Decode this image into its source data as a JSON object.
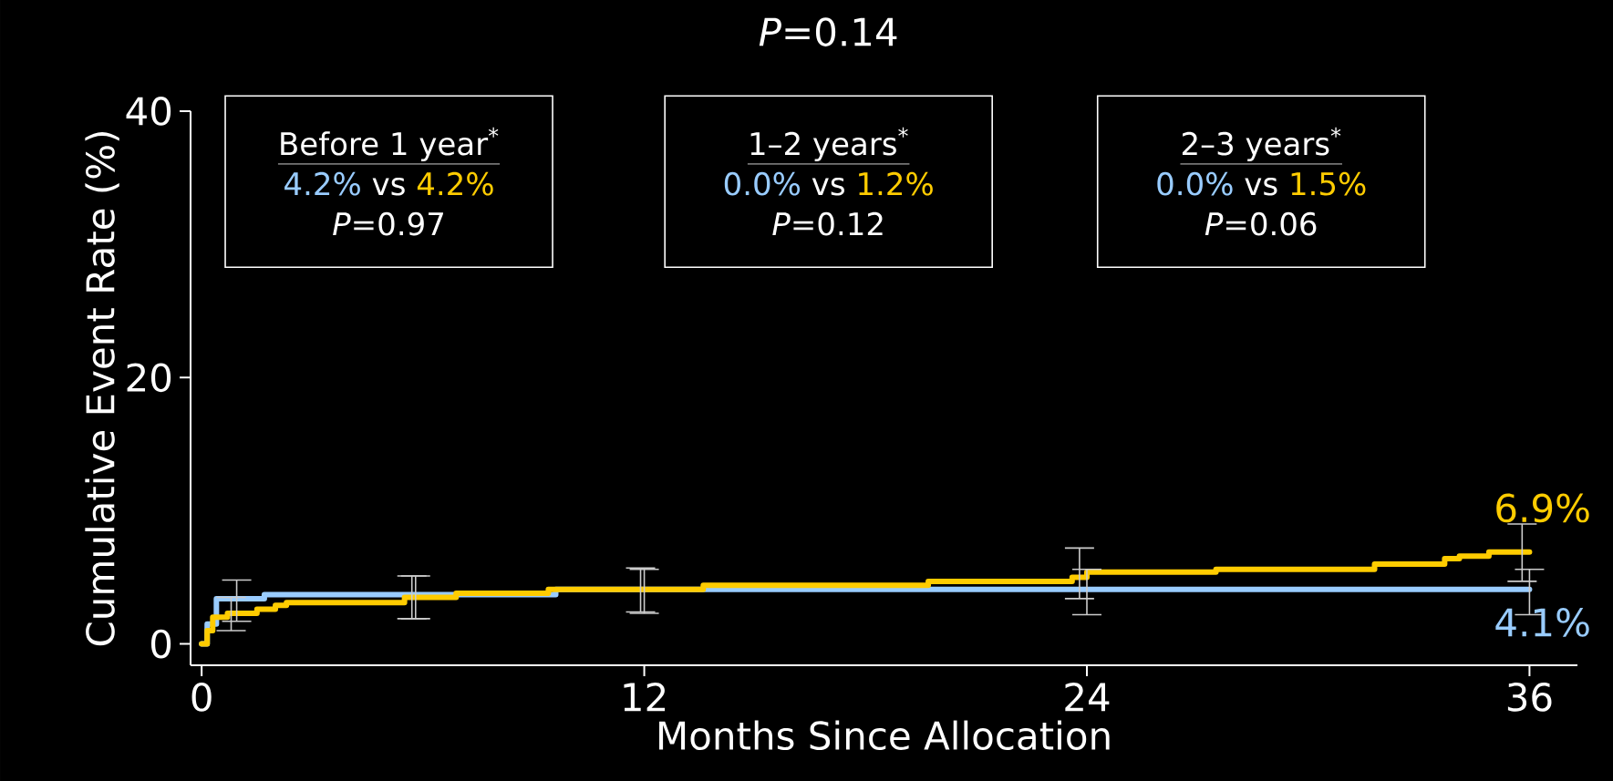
{
  "chart_data": {
    "type": "step",
    "title": "*P*=0.14",
    "xlabel": "Months Since Allocation",
    "ylabel": "Cumulative Event Rate (%)",
    "xlim": [
      -0.3,
      37.3
    ],
    "ylim": [
      -1.6,
      40
    ],
    "xticks": [
      0,
      12,
      24,
      36
    ],
    "yticks": [
      0,
      20,
      40
    ],
    "series": [
      {
        "color": "#99ccff",
        "x": [
          0,
          0.15,
          0.4,
          0.95,
          1.7,
          5.8,
          9.6,
          12.0,
          24.0,
          36
        ],
        "values": [
          0,
          1.5,
          3.4,
          3.4,
          3.7,
          3.7,
          4.1,
          4.1,
          4.1,
          4.1
        ],
        "errors": [
          null,
          null,
          null,
          [
            1.7,
            4.8
          ],
          null,
          [
            1.9,
            5.1
          ],
          null,
          [
            2.3,
            5.6
          ],
          [
            2.2,
            5.6
          ],
          [
            2.2,
            5.6
          ]
        ],
        "value_labels": [
          null,
          null,
          null,
          null,
          null,
          null,
          null,
          null,
          null,
          "4.1%"
        ]
      },
      {
        "color": "#ffcc00",
        "x": [
          0,
          0.15,
          0.3,
          0.7,
          0.8,
          1.5,
          2.0,
          2.3,
          5.5,
          5.7,
          6.9,
          9.4,
          11.9,
          13.6,
          19.7,
          23.6,
          23.8,
          24.0,
          27.5,
          31.8,
          33.7,
          34.1,
          34.9,
          35.8,
          36
        ],
        "values": [
          0,
          1.0,
          2.0,
          2.3,
          2.3,
          2.6,
          2.9,
          3.1,
          3.5,
          3.5,
          3.8,
          4.1,
          4.1,
          4.4,
          4.7,
          5.0,
          5.0,
          5.4,
          5.6,
          6.0,
          6.4,
          6.6,
          6.9,
          6.9,
          6.9
        ],
        "errors": [
          null,
          null,
          null,
          null,
          [
            1.0,
            3.5
          ],
          null,
          null,
          null,
          null,
          [
            1.9,
            5.1
          ],
          null,
          null,
          [
            2.4,
            5.7
          ],
          null,
          null,
          null,
          [
            3.4,
            7.2
          ],
          null,
          null,
          null,
          null,
          null,
          null,
          [
            4.7,
            9.0
          ],
          null
        ],
        "value_labels": [
          null,
          null,
          null,
          null,
          null,
          null,
          null,
          null,
          null,
          null,
          null,
          null,
          null,
          null,
          null,
          null,
          null,
          null,
          null,
          null,
          null,
          null,
          null,
          null,
          "6.9%"
        ]
      }
    ],
    "annotations": [
      "Before 1 year$^{*}$",
      "4.2%",
      "vs",
      "4.2%",
      "*P*=0.97",
      "1–2 years$^{*}$",
      "0.0%",
      "vs",
      "1.2%",
      "*P*=0.12",
      "2–3 years$^{*}$",
      "0.0%",
      "vs",
      "1.5%",
      "*P*=0.06"
    ]
  }
}
